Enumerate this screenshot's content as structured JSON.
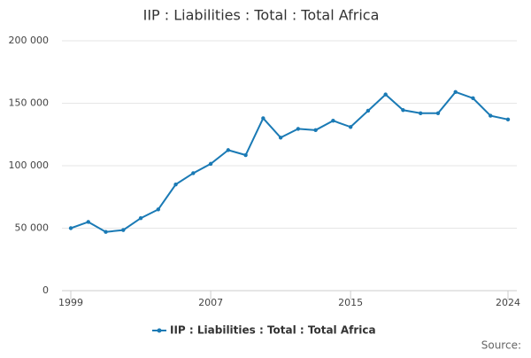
{
  "chart_data": {
    "type": "line",
    "title": "IIP : Liabilities : Total : Total Africa",
    "x": [
      1999,
      2000,
      2001,
      2002,
      2003,
      2004,
      2005,
      2006,
      2007,
      2008,
      2009,
      2010,
      2011,
      2012,
      2013,
      2014,
      2015,
      2016,
      2017,
      2018,
      2019,
      2020,
      2021,
      2022,
      2023,
      2024
    ],
    "series": [
      {
        "name": "IIP : Liabilities : Total : Total Africa",
        "color": "#1a7ab5",
        "values": [
          50000,
          55000,
          47000,
          48500,
          58000,
          65000,
          85000,
          94000,
          101500,
          112500,
          108500,
          138000,
          122500,
          129500,
          128500,
          136000,
          131000,
          144000,
          157000,
          144500,
          142000,
          142000,
          159000,
          154000,
          140000,
          137000
        ]
      }
    ],
    "xlim": [
      1999,
      2024
    ],
    "xticks": [
      1999,
      2007,
      2015,
      2024
    ],
    "ylim": [
      0,
      200000
    ],
    "yticks": [
      0,
      {
        "value": 50000,
        "label": "50 000"
      },
      {
        "value": 100000,
        "label": "100 000"
      },
      {
        "value": 150000,
        "label": "150 000"
      },
      {
        "value": 200000,
        "label": "200 000"
      }
    ],
    "grid": true,
    "legend": "bottom",
    "source": "Source:"
  }
}
